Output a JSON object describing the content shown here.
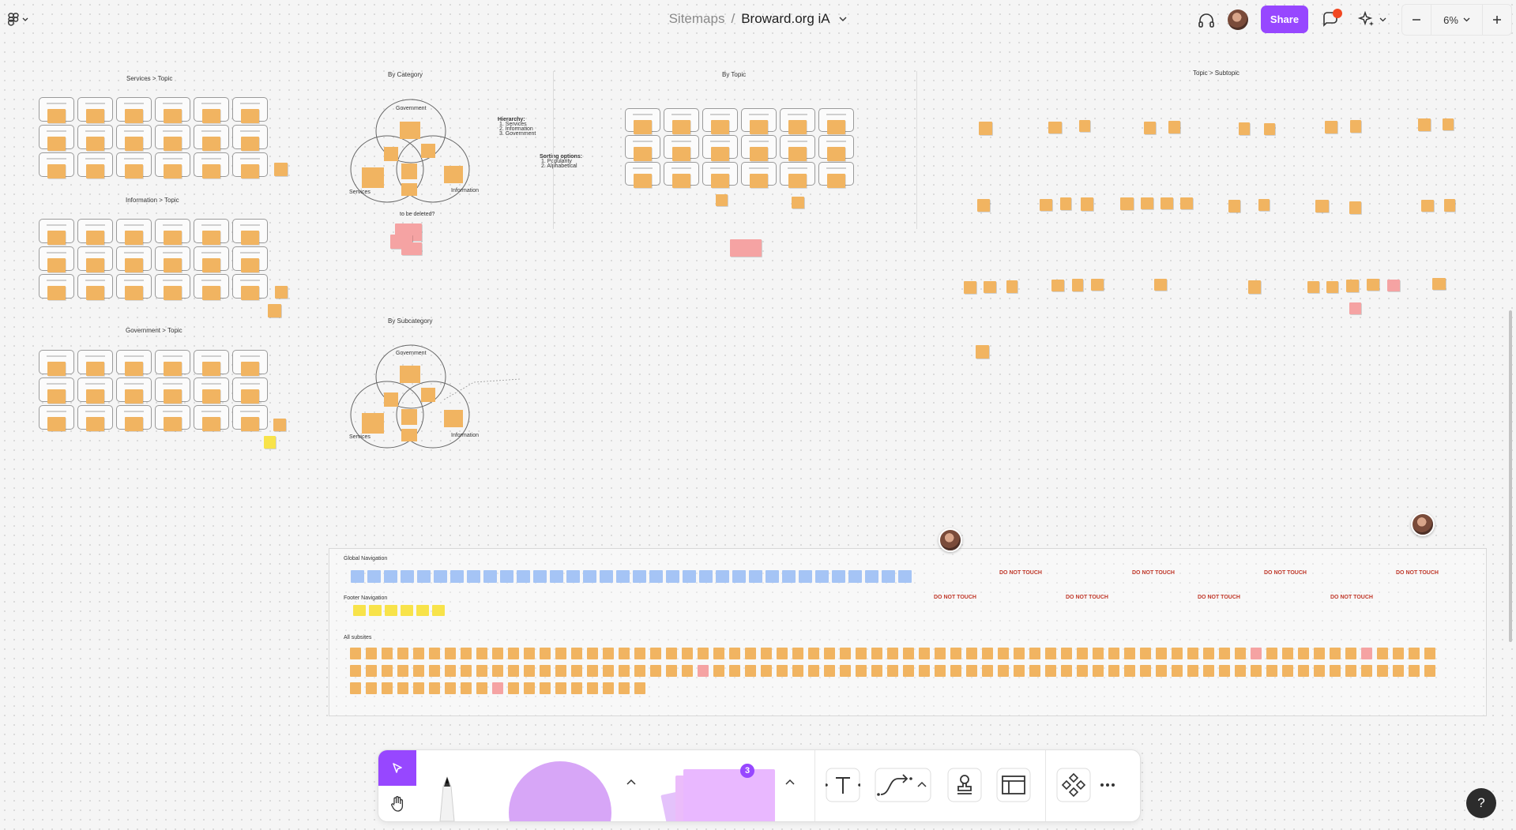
{
  "header": {
    "breadcrumb_parent": "Sitemaps",
    "breadcrumb_separator": "/",
    "file_name": "Broward.org iA",
    "share_label": "Share",
    "zoom_level": "6%"
  },
  "canvas": {
    "sections": {
      "services_topic": "Services > Topic",
      "information_topic": "Information > Topic",
      "government_topic": "Government > Topic",
      "by_category": "By Category",
      "by_topic": "By Topic",
      "topic_subtopic": "Topic > Subtopic",
      "by_subcategory": "By Subcategory"
    },
    "venn_labels": {
      "government": "Government",
      "services": "Services",
      "information": "Information"
    },
    "notes": {
      "hierarchy_title": "Hierarchy:",
      "hierarchy_1": "1. Services",
      "hierarchy_2": "2. Information",
      "hierarchy_3": "3. Government",
      "sorting_title": "Sorting options:",
      "sorting_1": "1. Popularity",
      "sorting_2": "2. Alphabetical",
      "to_be_deleted": "to be deleted?"
    },
    "nav": {
      "global_label": "Global Navigation",
      "footer_label": "Footer Navigation",
      "all_subsites_label": "All subsites",
      "do_not_touch": "DO NOT TOUCH"
    }
  },
  "toolbar": {
    "notification_count": "3",
    "help_label": "?"
  },
  "colors": {
    "accent": "#9747ff",
    "sticky": "#f1b461",
    "sticky_pink": "#f5a3a3",
    "sticky_yellow": "#f8e34a",
    "sticky_blue": "#a5c4f5",
    "do_not_touch": "#c0392b"
  }
}
